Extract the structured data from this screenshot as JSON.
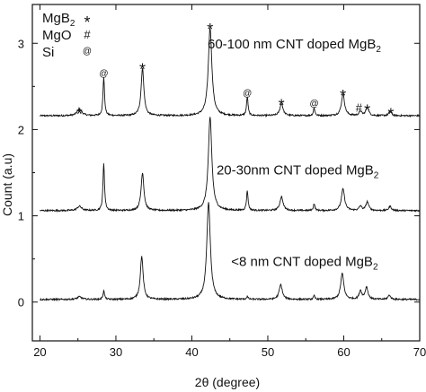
{
  "chart_data": {
    "type": "line",
    "xlabel": "2θ (degree)",
    "ylabel": "Count (a.u)",
    "xlim": [
      19,
      70
    ],
    "ylim": [
      -0.45,
      3.45
    ],
    "xticks": [
      20,
      30,
      40,
      50,
      60,
      70
    ],
    "yticks": [
      0,
      1,
      2,
      3
    ],
    "xtick_labels": [
      "20",
      "30",
      "40",
      "50",
      "60",
      "70"
    ],
    "ytick_labels": [
      "0",
      "1",
      "2",
      "3"
    ],
    "legend": {
      "placement": "top-left",
      "entries": [
        {
          "label": "MgB",
          "subscript": "2",
          "marker": "*"
        },
        {
          "label": "MgO",
          "subscript": "",
          "marker": "#"
        },
        {
          "label": "Si",
          "subscript": "",
          "marker": "@"
        }
      ]
    },
    "series": [
      {
        "name": "60-100 nm CNT doped MgB",
        "name_subscript": "2",
        "baseline": 2.16,
        "peaks": [
          {
            "x": 25.2,
            "h": 0.08,
            "w": 0.35
          },
          {
            "x": 28.4,
            "h": 0.45,
            "w": 0.12
          },
          {
            "x": 33.5,
            "h": 0.55,
            "w": 0.22
          },
          {
            "x": 42.4,
            "h": 1.02,
            "w": 0.28
          },
          {
            "x": 47.3,
            "h": 0.22,
            "w": 0.12
          },
          {
            "x": 51.8,
            "h": 0.14,
            "w": 0.25
          },
          {
            "x": 56.1,
            "h": 0.09,
            "w": 0.12
          },
          {
            "x": 59.9,
            "h": 0.25,
            "w": 0.25
          },
          {
            "x": 62.2,
            "h": 0.05,
            "w": 0.2
          },
          {
            "x": 63.1,
            "h": 0.1,
            "w": 0.22
          },
          {
            "x": 66.1,
            "h": 0.05,
            "w": 0.2
          }
        ]
      },
      {
        "name": "20-30nm CNT doped MgB",
        "name_subscript": "2",
        "baseline": 1.06,
        "peaks": [
          {
            "x": 25.2,
            "h": 0.05,
            "w": 0.35
          },
          {
            "x": 28.4,
            "h": 0.55,
            "w": 0.12
          },
          {
            "x": 33.5,
            "h": 0.44,
            "w": 0.22
          },
          {
            "x": 42.4,
            "h": 1.08,
            "w": 0.28
          },
          {
            "x": 47.3,
            "h": 0.23,
            "w": 0.12
          },
          {
            "x": 51.8,
            "h": 0.16,
            "w": 0.25
          },
          {
            "x": 56.1,
            "h": 0.08,
            "w": 0.12
          },
          {
            "x": 59.9,
            "h": 0.25,
            "w": 0.25
          },
          {
            "x": 62.2,
            "h": 0.05,
            "w": 0.2
          },
          {
            "x": 63.1,
            "h": 0.1,
            "w": 0.22
          },
          {
            "x": 66.1,
            "h": 0.05,
            "w": 0.2
          }
        ]
      },
      {
        "name": "<8 nm CNT doped MgB",
        "name_subscript": "2",
        "baseline": 0.03,
        "peaks": [
          {
            "x": 25.2,
            "h": 0.03,
            "w": 0.35
          },
          {
            "x": 28.4,
            "h": 0.1,
            "w": 0.12
          },
          {
            "x": 33.4,
            "h": 0.5,
            "w": 0.22
          },
          {
            "x": 42.2,
            "h": 1.12,
            "w": 0.28
          },
          {
            "x": 47.3,
            "h": 0.03,
            "w": 0.12
          },
          {
            "x": 51.7,
            "h": 0.17,
            "w": 0.25
          },
          {
            "x": 56.1,
            "h": 0.04,
            "w": 0.12
          },
          {
            "x": 59.8,
            "h": 0.3,
            "w": 0.25
          },
          {
            "x": 62.2,
            "h": 0.1,
            "w": 0.2
          },
          {
            "x": 63.0,
            "h": 0.14,
            "w": 0.22
          },
          {
            "x": 66.0,
            "h": 0.05,
            "w": 0.2
          }
        ]
      }
    ],
    "peak_markers": [
      {
        "symbol": "*",
        "x": 25.2,
        "y": 2.24
      },
      {
        "symbol": "@",
        "x": 28.4,
        "y": 2.66
      },
      {
        "symbol": "*",
        "x": 33.5,
        "y": 2.76
      },
      {
        "symbol": "*",
        "x": 42.4,
        "y": 3.22
      },
      {
        "symbol": "@",
        "x": 47.3,
        "y": 2.43
      },
      {
        "symbol": "*",
        "x": 51.8,
        "y": 2.34
      },
      {
        "symbol": "@",
        "x": 56.1,
        "y": 2.31
      },
      {
        "symbol": "*",
        "x": 59.9,
        "y": 2.45
      },
      {
        "symbol": "#",
        "x": 62.0,
        "y": 2.25
      },
      {
        "symbol": "*",
        "x": 63.1,
        "y": 2.28
      },
      {
        "symbol": "*",
        "x": 66.2,
        "y": 2.24
      }
    ],
    "series_label_positions": [
      {
        "x": 64.9,
        "y": 2.94
      },
      {
        "x": 64.6,
        "y": 1.48
      },
      {
        "x": 64.5,
        "y": 0.42
      }
    ],
    "grid": false
  }
}
